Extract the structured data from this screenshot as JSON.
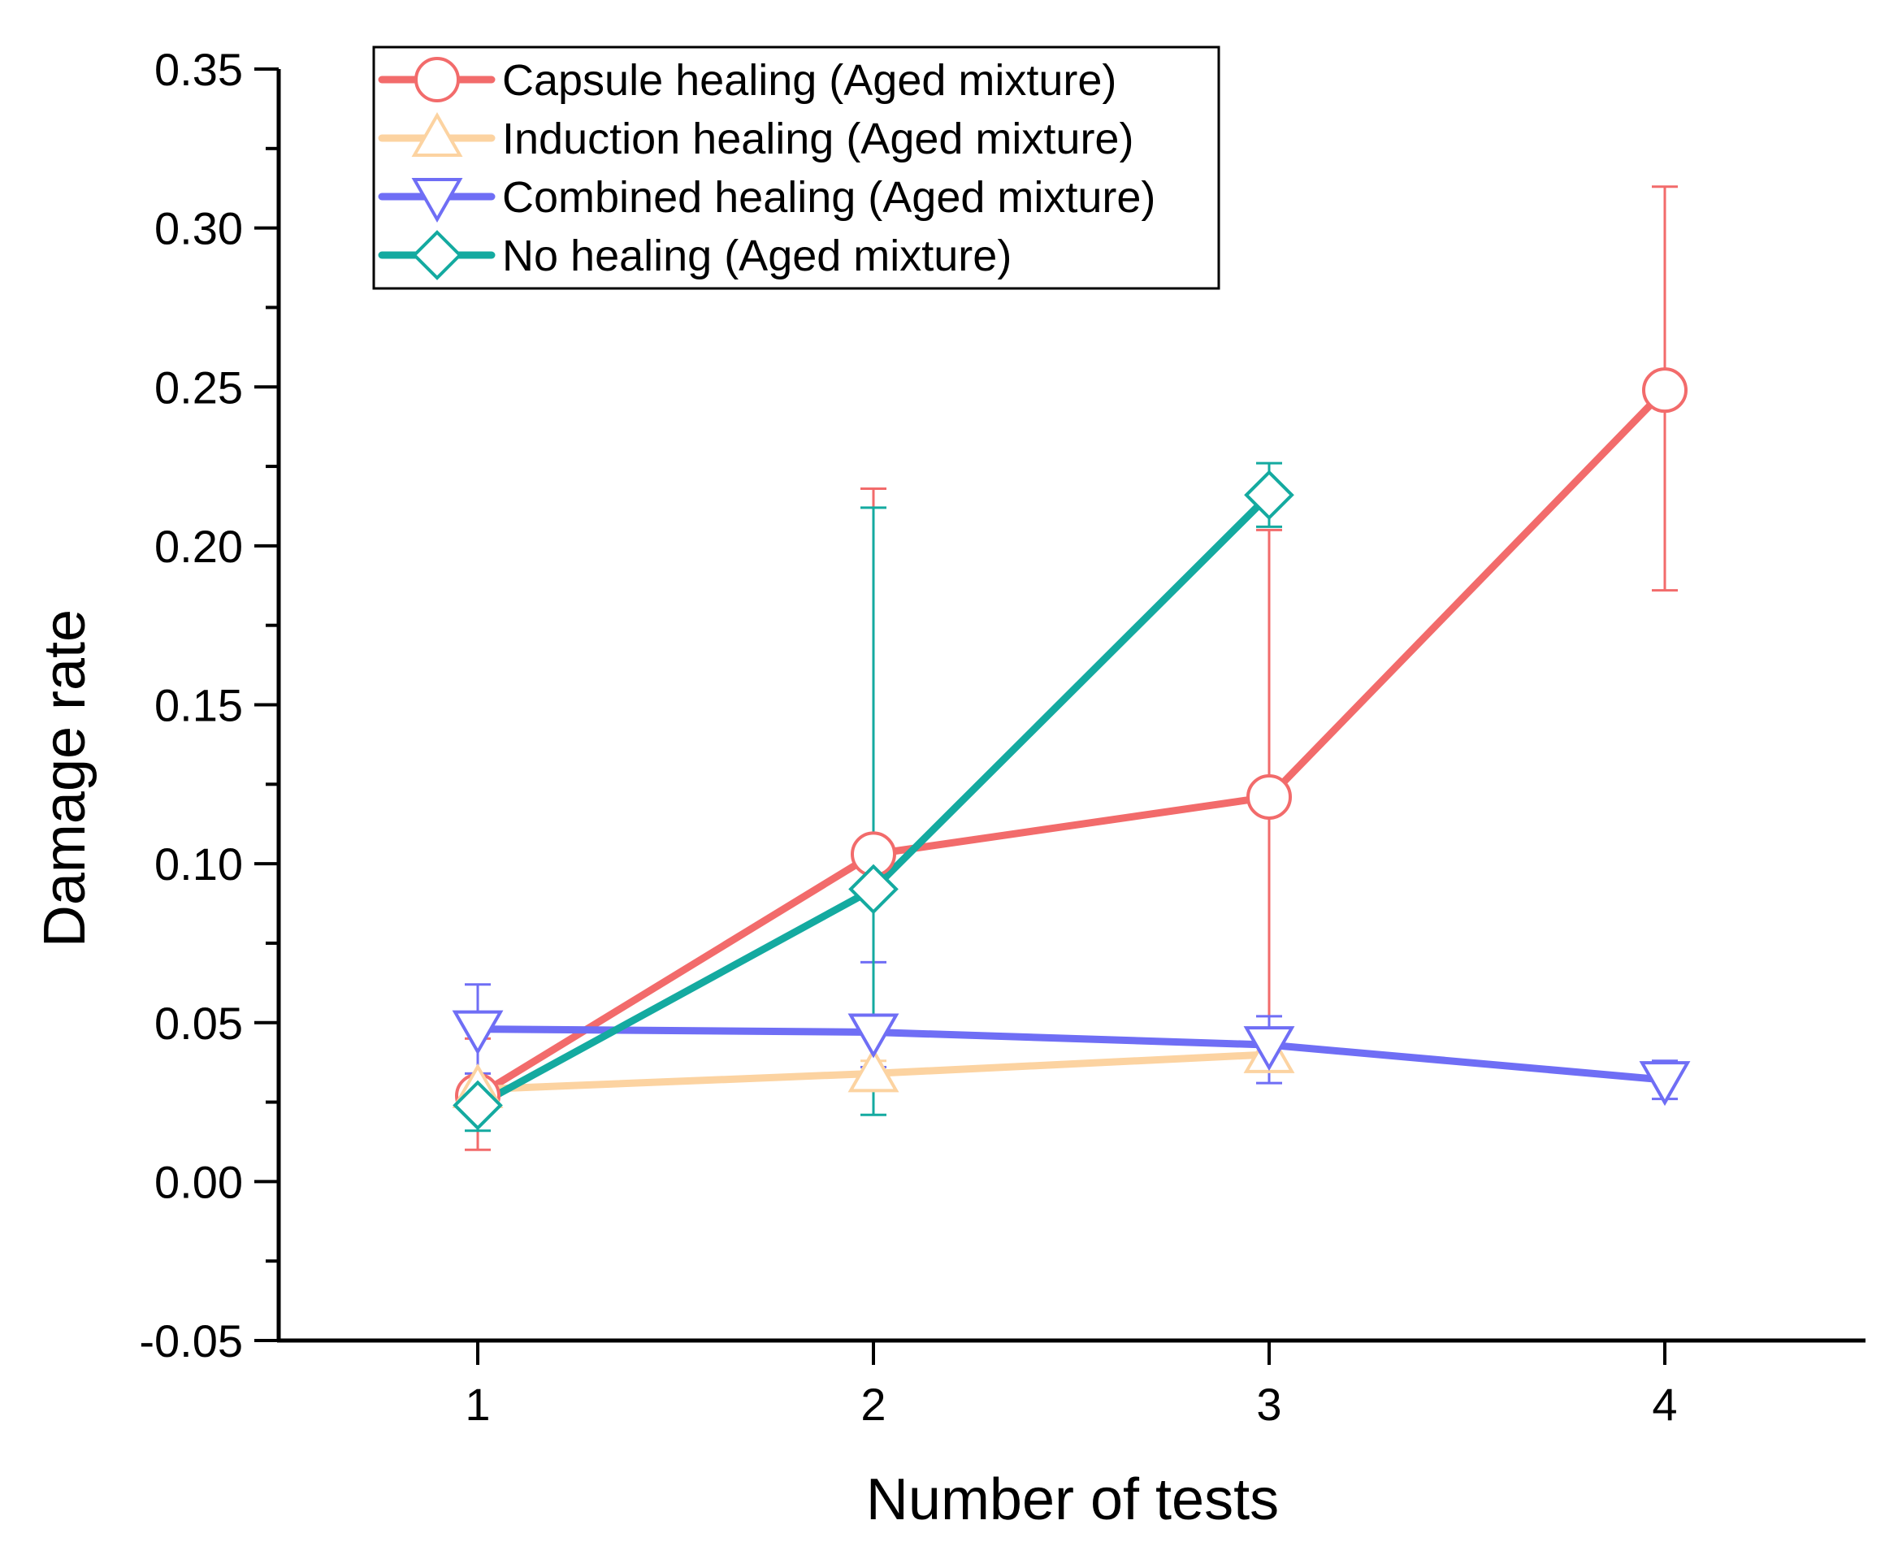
{
  "chart_data": {
    "type": "line",
    "xlabel": "Number of tests",
    "ylabel": "Damage rate",
    "xlim": [
      0.5,
      4.5
    ],
    "ylim": [
      -0.05,
      0.35
    ],
    "x_ticks": [
      1,
      2,
      3,
      4
    ],
    "x_tick_labels": [
      "1",
      "2",
      "3",
      "4"
    ],
    "y_ticks": [
      -0.05,
      0.0,
      0.05,
      0.1,
      0.15,
      0.2,
      0.25,
      0.3,
      0.35
    ],
    "y_tick_labels": [
      "-0.05",
      "0.00",
      "0.05",
      "0.10",
      "0.15",
      "0.20",
      "0.25",
      "0.30",
      "0.35"
    ],
    "legend_position": "top-left",
    "series": [
      {
        "name": "Capsule healing (Aged mixture)",
        "color": "#f26b6b",
        "marker": "circle",
        "x": [
          1,
          2,
          3,
          4
        ],
        "values": [
          0.027,
          0.103,
          0.121,
          0.249
        ],
        "err_low": [
          0.01,
          0.033,
          0.039,
          0.186
        ],
        "err_high": [
          0.045,
          0.218,
          0.205,
          0.313
        ]
      },
      {
        "name": "Induction healing (Aged mixture)",
        "color": "#fcd3a1",
        "marker": "triangle-up",
        "x": [
          1,
          2,
          3
        ],
        "values": [
          0.029,
          0.034,
          0.04
        ],
        "err_low": [
          0.025,
          0.031,
          0.037
        ],
        "err_high": [
          0.034,
          0.038,
          0.045
        ]
      },
      {
        "name": "Combined healing (Aged mixture)",
        "color": "#6f6ef5",
        "marker": "triangle-down",
        "x": [
          1,
          2,
          3,
          4
        ],
        "values": [
          0.048,
          0.047,
          0.043,
          0.032
        ],
        "err_low": [
          0.034,
          0.036,
          0.031,
          0.026
        ],
        "err_high": [
          0.062,
          0.069,
          0.052,
          0.038
        ]
      },
      {
        "name": "No healing (Aged mixture)",
        "color": "#14aaa0",
        "marker": "diamond",
        "x": [
          1,
          2,
          3
        ],
        "values": [
          0.024,
          0.092,
          0.216
        ],
        "err_low": [
          0.016,
          0.021,
          0.206
        ],
        "err_high": [
          0.032,
          0.212,
          0.226
        ]
      }
    ]
  }
}
